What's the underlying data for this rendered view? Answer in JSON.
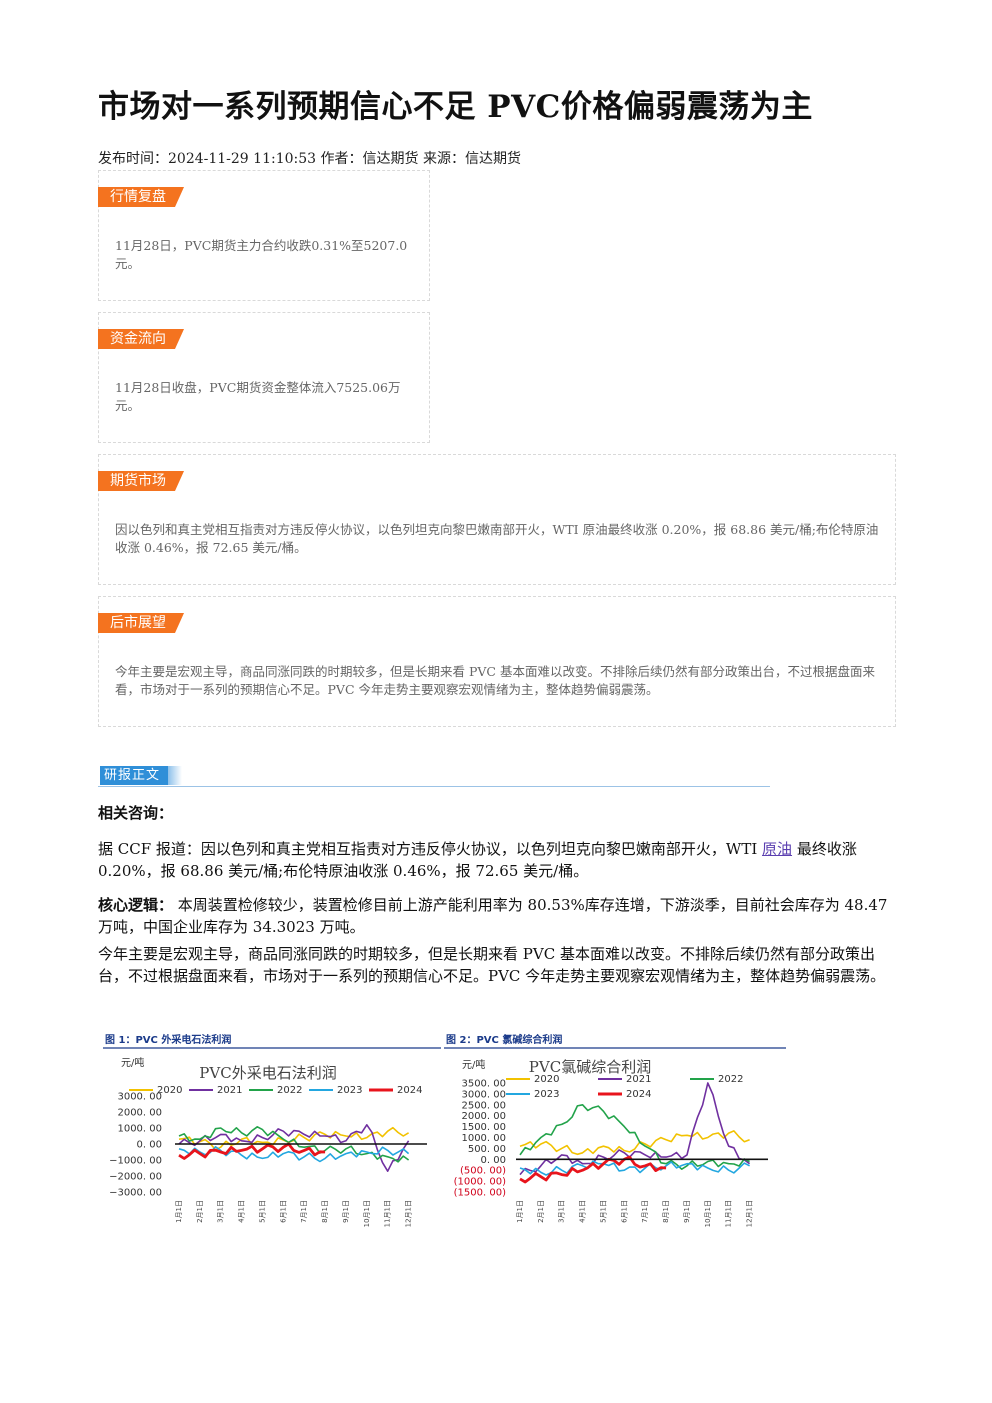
{
  "article": {
    "title": "市场对一系列预期信心不足 PVC价格偏弱震荡为主",
    "meta": "发布时间：2024-11-29 11:10:53 作者：信达期货 来源：信达期货"
  },
  "boxes": [
    {
      "tag": "行情复盘",
      "text": "11月28日，PVC期货主力合约收跌0.31%至5207.0元。"
    },
    {
      "tag": "资金流向",
      "text": "11月28日收盘，PVC期货资金整体流入7525.06万元。"
    },
    {
      "tag": "期货市场",
      "text": "因以色列和真主党相互指责对方违反停火协议，以色列坦克向黎巴嫩南部开火，WTI 原油最终收涨 0.20%，报 68.86 美元/桶;布伦特原油收涨 0.46%，报 72.65 美元/桶。"
    },
    {
      "tag": "后市展望",
      "text": "今年主要是宏观主导，商品同涨同跌的时期较多，但是长期来看 PVC 基本面难以改变。不排除后续仍然有部分政策出台，不过根据盘面来看，市场对于一系列的预期信心不足。PVC 今年走势主要观察宏观情绪为主，整体趋势偏弱震荡。"
    }
  ],
  "report": {
    "section_label": "研报正文",
    "consult_label": "相关咨询：",
    "p1_before": "据 CCF 报道：因以色列和真主党相互指责对方违反停火协议，以色列坦克向黎巴嫩南部开火，WTI ",
    "p1_link": "原油",
    "p1_after": " 最终收涨 0.20%，报 68.86 美元/桶;布伦特原油收涨 0.46%，报 72.65 美元/桶。",
    "p2_label": "核心逻辑：",
    "p2_text": " 本周装置检修较少，装置检修目前上游产能利用率为 80.53%库存连增，下游淡季，目前社会库存为 48.47 万吨，中国企业库存为 34.3023 万吨。",
    "p3": "今年主要是宏观主导，商品同涨同跌的时期较多，但是长期来看 PVC 基本面难以改变。不排除后续仍然有部分政策出台，不过根据盘面来看，市场对于一系列的预期信心不足。PVC 今年走势主要观察宏观情绪为主，整体趋势偏弱震荡。"
  },
  "chart_data": [
    {
      "type": "line",
      "caption": "图 1：PVC 外采电石法利润",
      "title": "PVC外采电石法利润",
      "ylabel": "元/吨",
      "ylim": [
        -3000,
        3000
      ],
      "y_ticks": [
        "3000. 00",
        "2000. 00",
        "1000. 00",
        "0. 00",
        "−1000. 00",
        "−2000. 00",
        "−3000. 00"
      ],
      "x_ticks": [
        "1月1日",
        "2月1日",
        "3月1日",
        "4月1日",
        "5月1日",
        "6月1日",
        "7月1日",
        "8月1日",
        "9月1日",
        "10月1日",
        "11月1日",
        "12月1日"
      ],
      "series": [
        {
          "name": "2020",
          "color": "#f2c200",
          "values": [
            300,
            150,
            -200,
            300,
            100,
            250,
            400,
            600,
            500,
            400,
            800,
            700
          ]
        },
        {
          "name": "2021",
          "color": "#7030a0",
          "values": [
            0,
            200,
            600,
            200,
            400,
            800,
            600,
            500,
            200,
            1200,
            -1700,
            200
          ]
        },
        {
          "name": "2022",
          "color": "#22a34a",
          "values": [
            500,
            300,
            1000,
            700,
            900,
            300,
            -200,
            -400,
            -300,
            -600,
            -800,
            -1000
          ]
        },
        {
          "name": "2023",
          "color": "#23a7e0",
          "values": [
            -300,
            -500,
            -400,
            -700,
            -900,
            -600,
            -800,
            -900,
            -600,
            -500,
            -400,
            -600
          ]
        },
        {
          "name": "2024",
          "color": "#e8141c",
          "values": [
            -700,
            -600,
            -500,
            -400,
            -300,
            -200,
            -400,
            -500
          ]
        }
      ]
    },
    {
      "type": "line",
      "caption": "图 2：PVC 氯碱综合利润",
      "title": "PVC氯碱综合利润",
      "ylabel": "元/吨",
      "ylim": [
        -1500,
        3500
      ],
      "y_ticks": [
        "3500. 00",
        "3000. 00",
        "2500. 00",
        "2000. 00",
        "1500. 00",
        "1000. 00",
        "500. 00",
        "0. 00",
        "(500. 00)",
        "(1000. 00)",
        "(1500. 00)"
      ],
      "x_ticks": [
        "1月1日",
        "2月1日",
        "3月1日",
        "4月1日",
        "5月1日",
        "6月1日",
        "7月1日",
        "8月1日",
        "9月1日",
        "10月1日",
        "11月1日",
        "12月1日"
      ],
      "series": [
        {
          "name": "2020",
          "color": "#f2c200",
          "values": [
            600,
            700,
            500,
            300,
            600,
            400,
            700,
            900,
            1100,
            1000,
            1200,
            900
          ]
        },
        {
          "name": "2021",
          "color": "#7030a0",
          "values": [
            -700,
            -300,
            200,
            -200,
            100,
            300,
            200,
            100,
            200,
            3500,
            600,
            -200
          ]
        },
        {
          "name": "2022",
          "color": "#22a34a",
          "values": [
            200,
            1000,
            1600,
            2500,
            2200,
            1500,
            600,
            -200,
            -300,
            -100,
            -200,
            -100
          ]
        },
        {
          "name": "2023",
          "color": "#23a7e0",
          "values": [
            -400,
            -600,
            -500,
            -300,
            -200,
            -500,
            -400,
            -300,
            -200,
            -400,
            -500,
            -300
          ]
        },
        {
          "name": "2024",
          "color": "#e8141c",
          "values": [
            -900,
            -800,
            -700,
            -500,
            -200,
            0,
            -300,
            -400
          ]
        }
      ]
    }
  ]
}
